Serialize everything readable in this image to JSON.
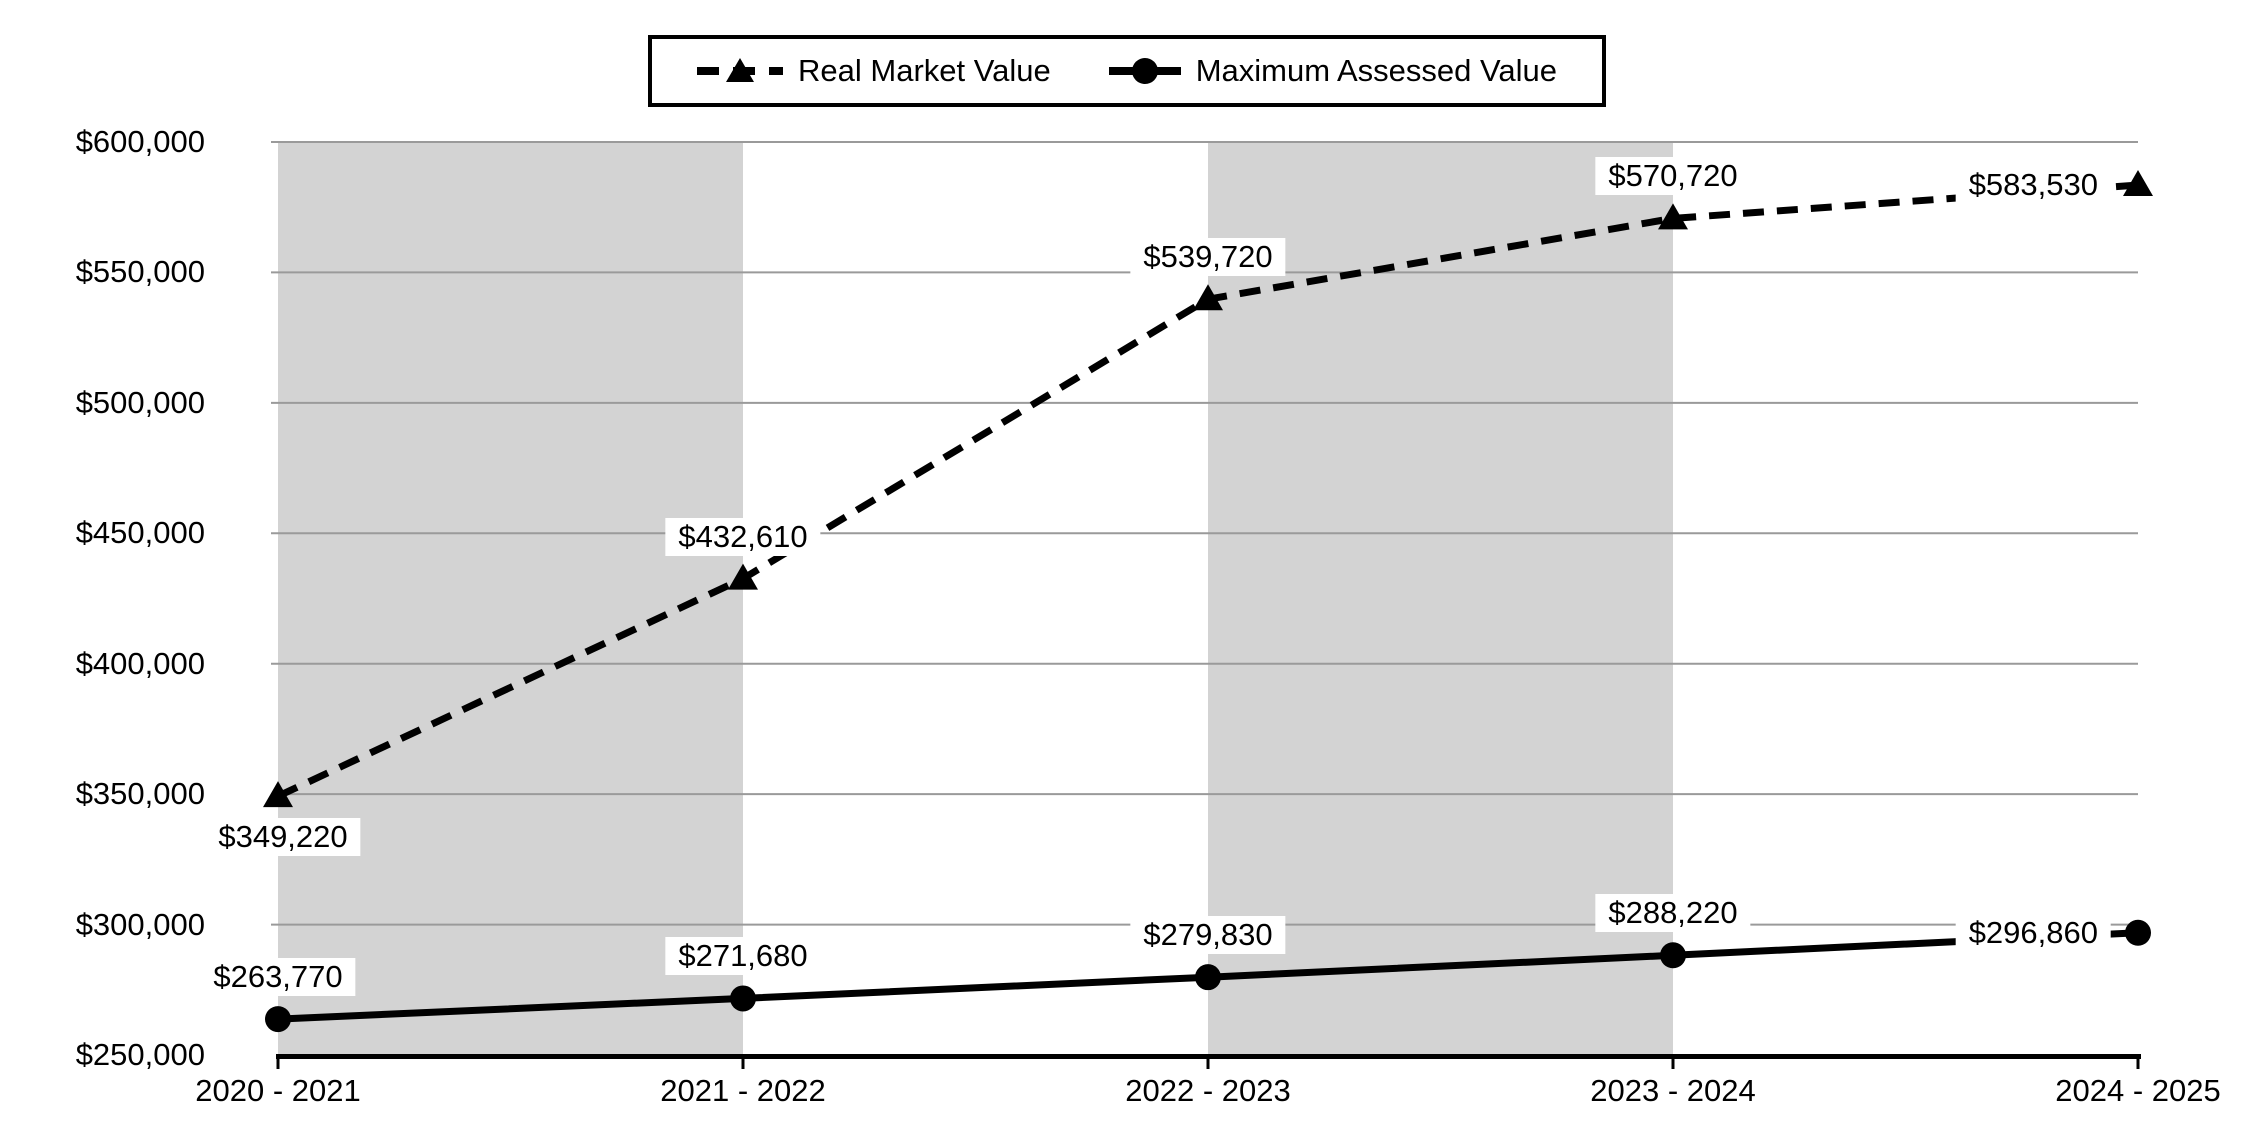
{
  "chart_data": {
    "type": "line",
    "title": "",
    "categories": [
      "2020 - 2021",
      "2021 - 2022",
      "2022 - 2023",
      "2023 - 2024",
      "2024 - 2025"
    ],
    "series": [
      {
        "name": "Real Market Value",
        "line_style": "dashed",
        "marker": "triangle",
        "values": [
          349220,
          432610,
          539720,
          570720,
          583530
        ],
        "labels": [
          "$349,220",
          "$432,610",
          "$539,720",
          "$570,720",
          "$583,530"
        ]
      },
      {
        "name": "Maximum Assessed Value",
        "line_style": "solid",
        "marker": "circle",
        "values": [
          263770,
          271680,
          279830,
          288220,
          296860
        ],
        "labels": [
          "$263,770",
          "$271,680",
          "$279,830",
          "$288,220",
          "$296,860"
        ]
      }
    ],
    "ylim": [
      250000,
      600000
    ],
    "ytick_interval": 50000,
    "ytick_labels": [
      "$250,000",
      "$300,000",
      "$350,000",
      "$400,000",
      "$450,000",
      "$500,000",
      "$550,000",
      "$600,000"
    ],
    "xlabel": "",
    "ylabel": "",
    "grid": "horizontal",
    "legend_position": "top-center",
    "shaded_column_bands": [
      [
        0,
        1
      ],
      [
        2,
        3
      ]
    ],
    "colors": {
      "series": "#000000",
      "band": "#d3d3d3",
      "gridline": "#9a9a9a",
      "axis": "#000000",
      "background": "#ffffff"
    }
  },
  "legend": {
    "items": [
      {
        "label": "Real Market Value"
      },
      {
        "label": "Maximum Assessed Value"
      }
    ]
  }
}
